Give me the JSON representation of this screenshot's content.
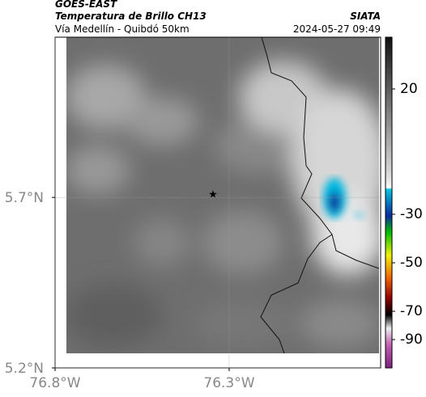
{
  "header": {
    "source": "GOES-EAST",
    "title": "Temperatura de Brillo CH13",
    "subtitle": "Vía Medellín - Quibdó 50km",
    "brand": "SIATA",
    "timestamp": "2024-05-27 09:49"
  },
  "map": {
    "xlim": [
      -76.8,
      -75.865
    ],
    "ylim": [
      5.2,
      6.17
    ],
    "xticks": [
      {
        "value": -76.8,
        "label": "76.8°W"
      },
      {
        "value": -76.3,
        "label": "76.3°W"
      }
    ],
    "yticks": [
      {
        "value": 5.2,
        "label": "5.2°N"
      },
      {
        "value": 5.7,
        "label": "5.7°N"
      }
    ]
  },
  "colorbar": {
    "ticks": [
      20,
      -30,
      -50,
      -70,
      -90
    ]
  }
}
